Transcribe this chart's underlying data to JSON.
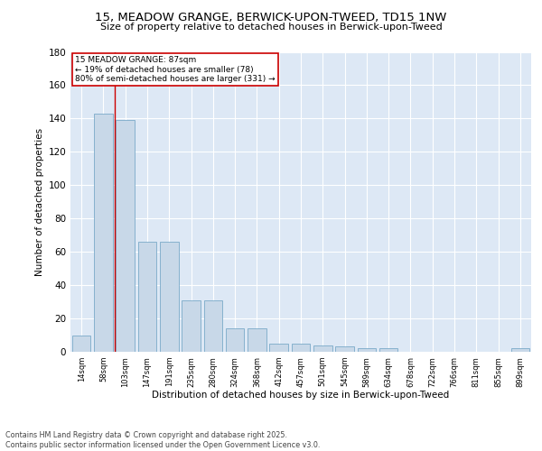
{
  "title": "15, MEADOW GRANGE, BERWICK-UPON-TWEED, TD15 1NW",
  "subtitle": "Size of property relative to detached houses in Berwick-upon-Tweed",
  "xlabel": "Distribution of detached houses by size in Berwick-upon-Tweed",
  "ylabel": "Number of detached properties",
  "bar_labels": [
    "14sqm",
    "58sqm",
    "103sqm",
    "147sqm",
    "191sqm",
    "235sqm",
    "280sqm",
    "324sqm",
    "368sqm",
    "412sqm",
    "457sqm",
    "501sqm",
    "545sqm",
    "589sqm",
    "634sqm",
    "678sqm",
    "722sqm",
    "766sqm",
    "811sqm",
    "855sqm",
    "899sqm"
  ],
  "bar_values": [
    10,
    143,
    139,
    66,
    66,
    31,
    31,
    14,
    14,
    5,
    5,
    4,
    3,
    2,
    2,
    0,
    0,
    0,
    0,
    0,
    2
  ],
  "bar_color": "#c8d8e8",
  "bar_edge_color": "#7aaac8",
  "background_color": "#dde8f5",
  "ylim": [
    0,
    180
  ],
  "yticks": [
    0,
    20,
    40,
    60,
    80,
    100,
    120,
    140,
    160,
    180
  ],
  "red_line_x": 1.5,
  "annotation_title": "15 MEADOW GRANGE: 87sqm",
  "annotation_line1": "← 19% of detached houses are smaller (78)",
  "annotation_line2": "80% of semi-detached houses are larger (331) →",
  "annotation_box_color": "#ffffff",
  "annotation_box_edge": "#cc0000",
  "red_line_color": "#cc0000",
  "footer_line1": "Contains HM Land Registry data © Crown copyright and database right 2025.",
  "footer_line2": "Contains public sector information licensed under the Open Government Licence v3.0."
}
